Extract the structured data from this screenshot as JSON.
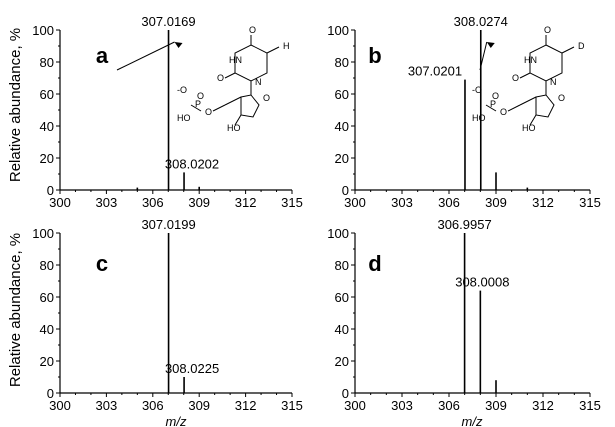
{
  "ylabel": "Relative abundance, %",
  "xlabel": "m/z",
  "chart_data": [
    {
      "type": "bar",
      "panel": "a",
      "xlim": [
        300,
        315
      ],
      "ylim": [
        0,
        100
      ],
      "xticks": [
        300,
        303,
        306,
        309,
        312,
        315
      ],
      "yticks": [
        0,
        20,
        40,
        60,
        80,
        100
      ],
      "peaks": [
        {
          "x": 305.0,
          "y": 1.5
        },
        {
          "x": 307.0169,
          "y": 100,
          "label": "307.0169"
        },
        {
          "x": 308.0202,
          "y": 11,
          "label": "308.0202"
        },
        {
          "x": 309.0,
          "y": 2
        }
      ],
      "structure": {
        "labels": [
          "O",
          "HN",
          "O",
          "N",
          "H",
          "O",
          "-O",
          "P",
          "HO",
          "O",
          "O",
          "HO"
        ]
      }
    },
    {
      "type": "bar",
      "panel": "b",
      "xlim": [
        300,
        315
      ],
      "ylim": [
        0,
        100
      ],
      "xticks": [
        300,
        303,
        306,
        309,
        312,
        315
      ],
      "yticks": [
        0,
        20,
        40,
        60,
        80,
        100
      ],
      "peaks": [
        {
          "x": 307.0201,
          "y": 69,
          "label": "307.0201"
        },
        {
          "x": 308.0274,
          "y": 100,
          "label": "308.0274"
        },
        {
          "x": 309.0,
          "y": 11
        },
        {
          "x": 311.0,
          "y": 1.5
        }
      ],
      "structure": {
        "labels": [
          "O",
          "HN",
          "O",
          "N",
          "D",
          "O",
          "-O",
          "P",
          "HO",
          "O",
          "O",
          "HO"
        ]
      }
    },
    {
      "type": "bar",
      "panel": "c",
      "xlim": [
        300,
        315
      ],
      "ylim": [
        0,
        100
      ],
      "xticks": [
        300,
        303,
        306,
        309,
        312,
        315
      ],
      "yticks": [
        0,
        20,
        40,
        60,
        80,
        100
      ],
      "peaks": [
        {
          "x": 307.0199,
          "y": 100,
          "label": "307.0199"
        },
        {
          "x": 308.0225,
          "y": 10,
          "label": "308.0225"
        }
      ]
    },
    {
      "type": "bar",
      "panel": "d",
      "xlim": [
        300,
        315
      ],
      "ylim": [
        0,
        100
      ],
      "xticks": [
        300,
        303,
        306,
        309,
        312,
        315
      ],
      "yticks": [
        0,
        20,
        40,
        60,
        80,
        100
      ],
      "peaks": [
        {
          "x": 306.9957,
          "y": 100,
          "label": "306.9957"
        },
        {
          "x": 308.0008,
          "y": 64,
          "label": "308.0008"
        },
        {
          "x": 309.0,
          "y": 8
        }
      ]
    }
  ]
}
